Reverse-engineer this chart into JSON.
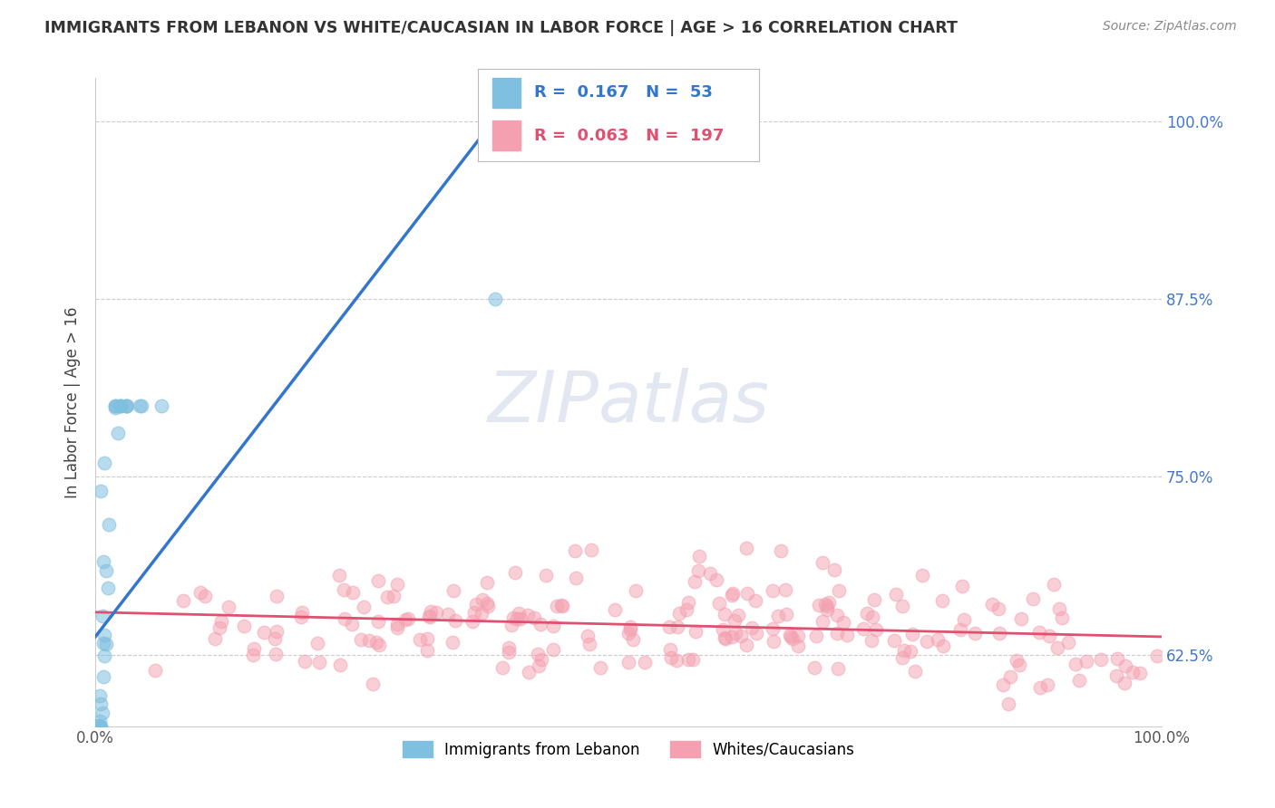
{
  "title": "IMMIGRANTS FROM LEBANON VS WHITE/CAUCASIAN IN LABOR FORCE | AGE > 16 CORRELATION CHART",
  "source": "Source: ZipAtlas.com",
  "ylabel": "In Labor Force | Age > 16",
  "xlim": [
    0.0,
    1.0
  ],
  "ylim": [
    0.575,
    1.03
  ],
  "yticks": [
    0.625,
    0.75,
    0.875,
    1.0
  ],
  "ytick_labels": [
    "62.5%",
    "75.0%",
    "87.5%",
    "100.0%"
  ],
  "xtick_labels": [
    "0.0%",
    "100.0%"
  ],
  "blue_R": 0.167,
  "blue_N": 53,
  "pink_R": 0.063,
  "pink_N": 197,
  "blue_color": "#7fbfdf",
  "pink_color": "#f4a0b0",
  "blue_line_color": "#3377cc",
  "pink_line_color": "#e05070",
  "legend_blue_label": "Immigrants from Lebanon",
  "legend_pink_label": "Whites/Caucasians",
  "watermark": "ZIPatlas",
  "background_color": "#ffffff",
  "grid_color": "#cccccc",
  "title_color": "#333333",
  "axis_label_color": "#555555",
  "right_tick_color": "#4477cc"
}
